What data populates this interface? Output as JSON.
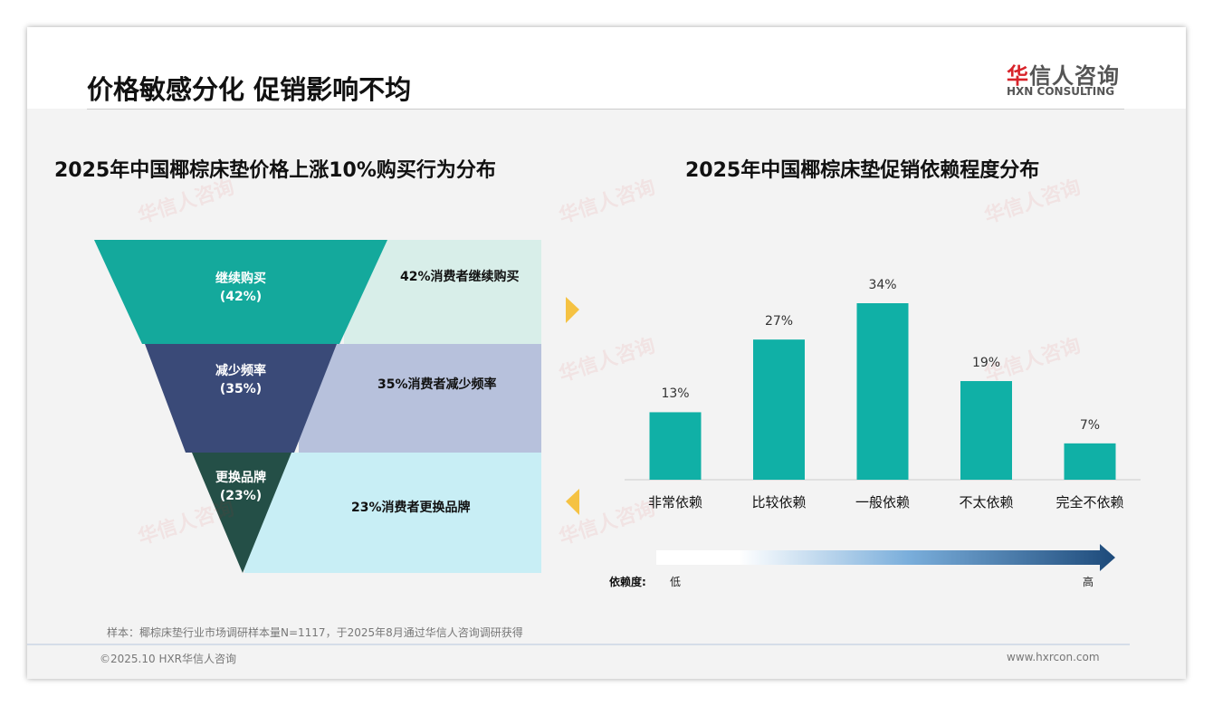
{
  "header": {
    "title": "价格敏感分化 促销影响不均",
    "logo_cn_mark": "华",
    "logo_cn_rest": "信人咨询",
    "logo_en": "HXN CONSULTING"
  },
  "left": {
    "title": "2025年中国椰棕床垫价格上涨10%购买行为分布",
    "funnel": [
      {
        "label": "继续购买",
        "pct": "(42%)",
        "desc": "42%消费者继续购买",
        "value": 42,
        "color": "#14a99c",
        "band": "#d8eee9"
      },
      {
        "label": "减少频率",
        "pct": "(35%)",
        "desc": "35%消费者减少频率",
        "value": 35,
        "color": "#3a4a78",
        "band": "#b7c1dc"
      },
      {
        "label": "更换品牌",
        "pct": "(23%)",
        "desc": "23%消费者更换品牌",
        "value": 23,
        "color": "#244f47",
        "band": "#c8eef5"
      }
    ]
  },
  "chart_data": {
    "type": "bar",
    "title": "2025年中国椰棕床垫促销依赖程度分布",
    "categories": [
      "非常依赖",
      "比较依赖",
      "一般依赖",
      "不太依赖",
      "完全不依赖"
    ],
    "values": [
      13,
      27,
      34,
      19,
      7
    ],
    "labels": [
      "13%",
      "27%",
      "34%",
      "19%",
      "7%"
    ],
    "ylim": [
      0,
      40
    ],
    "color": "#10b0a6"
  },
  "scale": {
    "label": "依赖度:",
    "low": "低",
    "high": "高"
  },
  "footer": {
    "note": "样本：椰棕床垫行业市场调研样本量N=1117，于2025年8月通过华信人咨询调研获得",
    "copyright": "©2025.10 HXR华信人咨询",
    "url": "www.hxrcon.com"
  },
  "colors": {
    "accent_arrow": "#f5c242"
  }
}
